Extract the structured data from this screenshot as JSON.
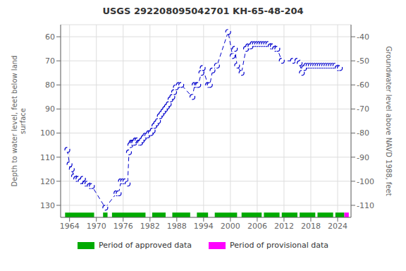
{
  "chart_data": {
    "type": "line",
    "title": "USGS 292208095042701 KH-65-48-204",
    "ylabel": "Depth to water level, feet below land\nsurface",
    "y2label": "Groundwater level above NAVD 1988, feet",
    "xlim": [
      1962,
      2027
    ],
    "xticks": [
      1964,
      1970,
      1976,
      1982,
      1988,
      1994,
      2000,
      2006,
      2012,
      2018,
      2024
    ],
    "ylim": [
      135,
      55
    ],
    "yticks": [
      60,
      70,
      80,
      90,
      100,
      110,
      120,
      130
    ],
    "y2lim": [
      -115,
      -35
    ],
    "y2ticks": [
      -40,
      -50,
      -60,
      -70,
      -80,
      -90,
      -100,
      -110
    ],
    "grid": true,
    "color": "#0000cc",
    "marker": "circle",
    "line_style": "dashed",
    "x": [
      1963.5,
      1964.0,
      1964.5,
      1965.0,
      1965.5,
      1966.0,
      1966.5,
      1967.0,
      1967.5,
      1968.0,
      1968.5,
      1969.0,
      1972.0,
      1974.5,
      1975.0,
      1975.5,
      1976.0,
      1976.5,
      1977.0,
      1977.3,
      1977.6,
      1977.9,
      1978.2,
      1978.5,
      1978.8,
      1979.2,
      1979.5,
      1979.8,
      1980.2,
      1980.6,
      1981.0,
      1981.4,
      1981.8,
      1982.2,
      1982.6,
      1983.0,
      1983.4,
      1983.8,
      1984.2,
      1984.6,
      1985.0,
      1985.4,
      1985.8,
      1986.2,
      1986.6,
      1987.0,
      1987.4,
      1987.8,
      1988.5,
      1989.0,
      1991.5,
      1992.0,
      1992.5,
      1992.8,
      1993.5,
      1993.8,
      1995.0,
      1995.4,
      1996.0,
      1997.0,
      1999.5,
      2000.5,
      2001.0,
      2001.5,
      2002.5,
      2003.5,
      2004.0,
      2004.5,
      2005.0,
      2005.5,
      2006.0,
      2006.5,
      2007.0,
      2007.5,
      2008.0,
      2008.5,
      2009.0,
      2009.5,
      2010.0,
      2010.5,
      2011.5,
      2014.0,
      2015.0,
      2015.5,
      2016.0,
      2016.5,
      2017.0,
      2017.5,
      2018.0,
      2018.5,
      2019.0,
      2019.5,
      2020.0,
      2020.5,
      2021.0,
      2021.5,
      2022.0,
      2022.5,
      2023.0,
      2023.5,
      2024.0,
      2024.5
    ],
    "values": [
      107,
      113,
      115,
      118,
      119,
      119,
      120,
      119,
      121,
      121,
      122,
      122,
      131,
      125,
      125,
      120,
      120,
      120,
      121,
      108,
      105,
      104,
      104,
      104,
      103,
      103,
      104,
      104,
      103,
      102,
      101,
      101,
      100,
      100,
      99,
      97,
      96,
      95,
      93,
      92,
      91,
      90,
      89,
      88,
      86,
      85,
      83,
      81,
      80,
      80,
      85,
      80,
      80,
      80,
      75,
      73,
      80,
      80,
      74,
      72,
      58,
      68,
      65,
      72,
      75,
      65,
      64,
      64,
      63,
      63,
      63,
      63,
      63,
      63,
      63,
      63,
      64,
      64,
      65,
      65,
      70,
      70,
      70,
      71,
      75,
      73,
      72,
      72,
      72,
      72,
      72,
      72,
      72,
      72,
      72,
      72,
      72,
      72,
      72,
      72,
      73,
      73
    ],
    "period_band": [
      133,
      135
    ],
    "periods": [
      {
        "name": "Period of approved data",
        "color": "#00aa00",
        "ranges": [
          [
            1963.0,
            1969.5
          ],
          [
            1971.5,
            1972.5
          ],
          [
            1973.5,
            1981.0
          ],
          [
            1982.5,
            1985.5
          ],
          [
            1987.0,
            1991.0
          ],
          [
            1992.5,
            1995.0
          ],
          [
            1996.5,
            2001.5
          ],
          [
            2002.5,
            2007.0
          ],
          [
            2007.5,
            2011.0
          ],
          [
            2011.5,
            2015.0
          ],
          [
            2015.5,
            2019.0
          ],
          [
            2019.5,
            2023.0
          ],
          [
            2023.5,
            2025.5
          ]
        ]
      },
      {
        "name": "Period of provisional data",
        "color": "#ff00ff",
        "ranges": [
          [
            2025.5,
            2026.5
          ]
        ]
      }
    ]
  }
}
